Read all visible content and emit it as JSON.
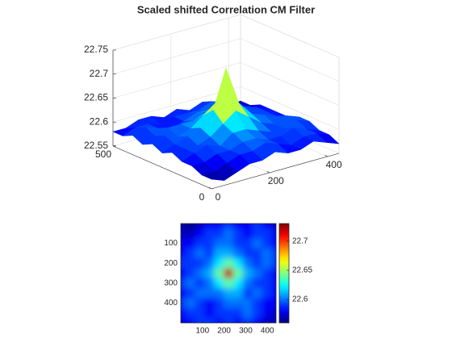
{
  "chart_data": {
    "type": "surface",
    "title": "Scaled shifted Correlation CM Filter",
    "colormap": "jet",
    "x": [
      0,
      44,
      88,
      132,
      176,
      220,
      264,
      308,
      352,
      396,
      440
    ],
    "y": [
      0,
      50,
      100,
      150,
      200,
      250,
      300,
      350,
      400,
      450,
      500
    ],
    "z": [
      [
        22.57,
        22.56,
        22.57,
        22.58,
        22.58,
        22.59,
        22.58,
        22.58,
        22.59,
        22.58,
        22.57
      ],
      [
        22.57,
        22.57,
        22.58,
        22.59,
        22.59,
        22.6,
        22.59,
        22.58,
        22.59,
        22.59,
        22.58
      ],
      [
        22.58,
        22.58,
        22.59,
        22.59,
        22.6,
        22.6,
        22.59,
        22.59,
        22.6,
        22.59,
        22.58
      ],
      [
        22.58,
        22.59,
        22.6,
        22.59,
        22.61,
        22.61,
        22.6,
        22.59,
        22.59,
        22.6,
        22.59
      ],
      [
        22.59,
        22.59,
        22.59,
        22.6,
        22.62,
        22.64,
        22.62,
        22.6,
        22.59,
        22.6,
        22.59
      ],
      [
        22.58,
        22.59,
        22.6,
        22.61,
        22.64,
        22.72,
        22.64,
        22.61,
        22.6,
        22.59,
        22.58
      ],
      [
        22.59,
        22.6,
        22.59,
        22.6,
        22.62,
        22.64,
        22.62,
        22.6,
        22.59,
        22.59,
        22.58
      ],
      [
        22.58,
        22.59,
        22.6,
        22.6,
        22.6,
        22.61,
        22.61,
        22.59,
        22.6,
        22.59,
        22.58
      ],
      [
        22.59,
        22.6,
        22.59,
        22.58,
        22.59,
        22.6,
        22.6,
        22.6,
        22.59,
        22.58,
        22.58
      ],
      [
        22.58,
        22.59,
        22.59,
        22.58,
        22.59,
        22.59,
        22.59,
        22.6,
        22.59,
        22.58,
        22.57
      ],
      [
        22.58,
        22.58,
        22.59,
        22.59,
        22.58,
        22.59,
        22.58,
        22.59,
        22.58,
        22.57,
        22.57
      ]
    ],
    "xlim": [
      0,
      440
    ],
    "ylim": [
      0,
      500
    ],
    "zlim": [
      22.55,
      22.75
    ],
    "xticks": [
      0,
      200,
      400
    ],
    "yticks": [
      0,
      500
    ],
    "zticks": [
      22.55,
      22.6,
      22.65,
      22.7,
      22.75
    ],
    "grid": true,
    "image_xlim": [
      0,
      440
    ],
    "image_ylim": [
      0,
      500
    ],
    "image_xticks": [
      100,
      200,
      300,
      400
    ],
    "image_yticks": [
      100,
      200,
      300,
      400
    ],
    "clim": [
      22.56,
      22.73
    ],
    "cticks": [
      22.6,
      22.65,
      22.7
    ]
  }
}
